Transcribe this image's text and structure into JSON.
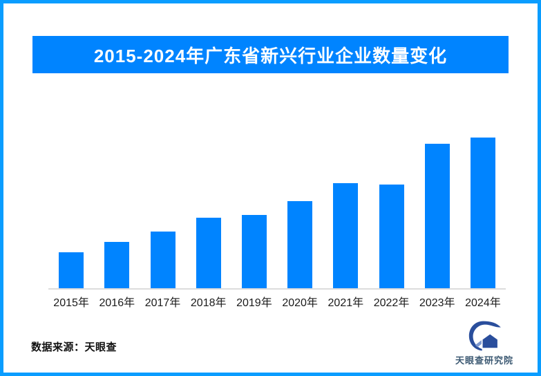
{
  "page": {
    "background": "#ffffff",
    "border_color": "#0a9dff"
  },
  "header": {
    "title": "2015-2024年广东省新兴行业企业数量变化",
    "banner_color": "#0084ff",
    "title_color": "#ffffff"
  },
  "chart_data": {
    "type": "bar",
    "title": "2015-2024年广东省新兴行业企业数量变化",
    "categories": [
      "2015年",
      "2016年",
      "2017年",
      "2018年",
      "2019年",
      "2020年",
      "2021年",
      "2022年",
      "2023年",
      "2024年"
    ],
    "values": [
      24,
      31,
      38,
      47,
      49,
      58,
      70,
      69,
      96,
      100
    ],
    "ylim": [
      0,
      100
    ],
    "note": "柱体无数值标签、无Y轴刻度；values为按柱高估算的相对值(2024年=100)",
    "bar_color": "#0084ff",
    "axis_line_color": "#dcdcdc",
    "tick_label_color": "#1a1a1a",
    "xlabel": "",
    "ylabel": "",
    "grid": false,
    "legend": "none"
  },
  "footer": {
    "source_label": "数据来源：天眼查",
    "logo_text": "天眼查研究院",
    "logo_primary_color": "#2a4e9c",
    "logo_accent_color": "#7e99d0",
    "logo_text_color": "#3d5a73"
  }
}
